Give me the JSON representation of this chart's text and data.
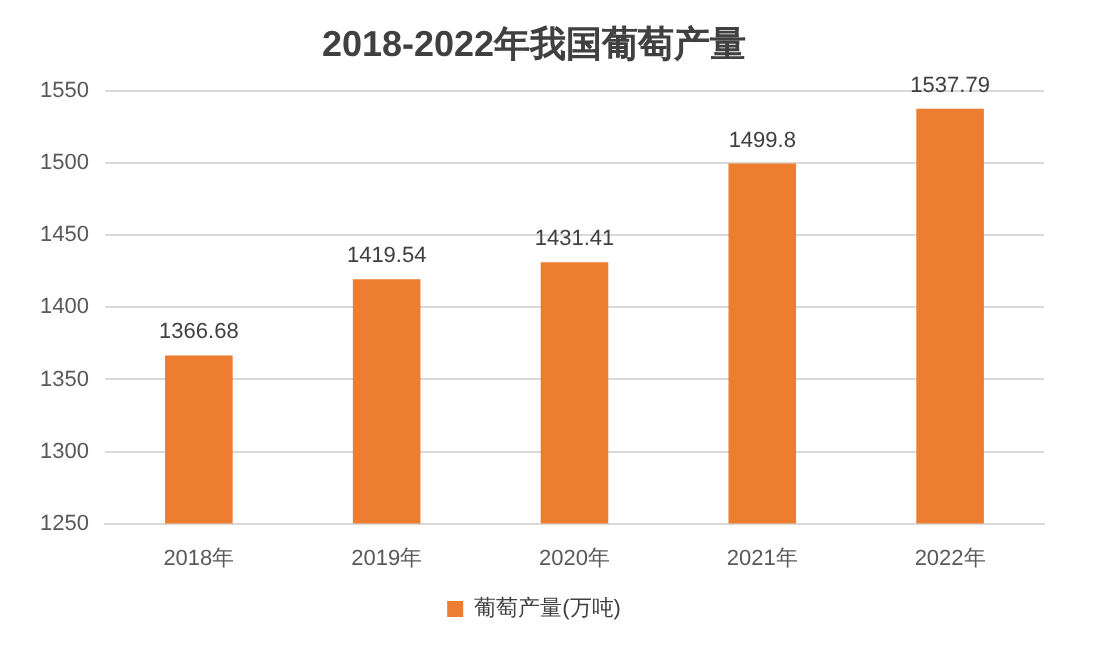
{
  "chart_data": {
    "type": "bar",
    "title": "2018-2022年我国葡萄产量",
    "categories": [
      "2018年",
      "2019年",
      "2020年",
      "2021年",
      "2022年"
    ],
    "series": [
      {
        "name": "葡萄产量(万吨)",
        "color": "#ed7d31",
        "values": [
          1366.68,
          1419.54,
          1431.41,
          1499.8,
          1537.79
        ]
      }
    ],
    "ylim": [
      1250,
      1550
    ],
    "yticks": [
      1250,
      1300,
      1350,
      1400,
      1450,
      1500,
      1550
    ],
    "grid": "y",
    "legend": "bottom",
    "data_labels": true
  }
}
